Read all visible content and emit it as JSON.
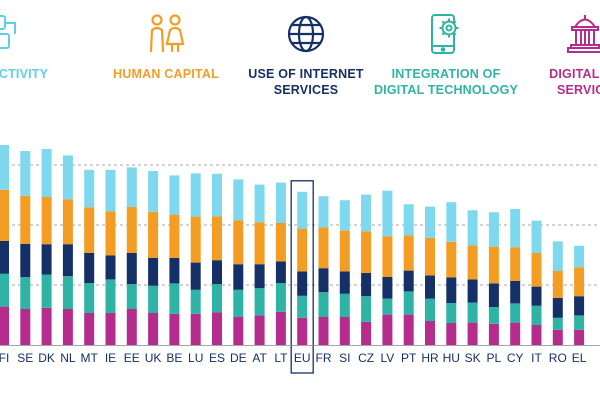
{
  "legend": {
    "connectivity": {
      "label": "NNECTIVITY",
      "color": "#5FCFE8",
      "icon": "network-icon"
    },
    "human_capital": {
      "label": "HUMAN CAPITAL",
      "color": "#F49D24",
      "icon": "people-icon"
    },
    "internet": {
      "label": "USE OF INTERNET\nSERVICES",
      "color": "#153067",
      "icon": "globe-icon"
    },
    "integration": {
      "label": "INTEGRATION OF\nDIGITAL TECHNOLOGY",
      "color": "#2FB3A5",
      "icon": "phone-gear-icon"
    },
    "public": {
      "label": "DIGITAL PU\nSERVICE",
      "color": "#B52D8C",
      "icon": "public-building-icon"
    }
  },
  "chart_data": {
    "type": "bar",
    "stacked": true,
    "categories": [
      "FI",
      "SE",
      "DK",
      "NL",
      "MT",
      "IE",
      "EE",
      "UK",
      "BE",
      "LU",
      "ES",
      "DE",
      "AT",
      "LT",
      "EU",
      "FR",
      "SI",
      "CZ",
      "LV",
      "PT",
      "HR",
      "HU",
      "SK",
      "PL",
      "CY",
      "IT",
      "RO",
      "EL"
    ],
    "highlight": "EU",
    "series": [
      {
        "name": "Digital public services",
        "color": "#B52D8C",
        "values": [
          9.6,
          9.0,
          9.3,
          9.0,
          8.0,
          8.0,
          9.0,
          8.0,
          7.8,
          7.8,
          8.2,
          7.0,
          7.4,
          8.3,
          6.8,
          7.0,
          7.0,
          5.8,
          7.6,
          7.6,
          6.0,
          5.5,
          5.6,
          5.3,
          5.6,
          5.0,
          3.8,
          3.8
        ]
      },
      {
        "name": "Integration of digital technology",
        "color": "#2FB3A5",
        "values": [
          8.2,
          8.0,
          8.3,
          8.2,
          7.5,
          8.4,
          6.2,
          6.8,
          7.6,
          6.0,
          7.0,
          6.8,
          6.8,
          7.2,
          5.5,
          6.2,
          5.8,
          6.4,
          4.0,
          5.8,
          5.6,
          5.0,
          5.0,
          4.2,
          4.8,
          4.8,
          3.0,
          3.6
        ]
      },
      {
        "name": "Use of internet services",
        "color": "#153067",
        "values": [
          8.2,
          8.3,
          7.6,
          8.0,
          7.5,
          6.0,
          7.8,
          7.0,
          6.4,
          6.8,
          6.0,
          6.4,
          6.0,
          5.4,
          6.1,
          6.0,
          5.6,
          5.8,
          5.4,
          5.2,
          5.8,
          6.4,
          5.8,
          5.9,
          5.6,
          4.8,
          5.0,
          4.8
        ]
      },
      {
        "name": "Human capital",
        "color": "#F49D24",
        "values": [
          12.8,
          12.0,
          11.8,
          11.2,
          11.4,
          11.0,
          11.5,
          11.5,
          10.8,
          11.5,
          11.0,
          11.0,
          10.5,
          9.6,
          10.7,
          10.2,
          10.2,
          10.4,
          10.2,
          8.8,
          9.4,
          8.9,
          8.5,
          9.2,
          8.4,
          8.4,
          6.7,
          7.2
        ]
      },
      {
        "name": "Connectivity",
        "color": "#7FD9EE",
        "values": [
          11.2,
          11.2,
          12.0,
          11.0,
          9.4,
          10.4,
          9.9,
          10.2,
          9.8,
          10.8,
          10.6,
          10.2,
          9.4,
          10.1,
          9.2,
          7.8,
          7.6,
          9.2,
          11.4,
          7.8,
          7.8,
          9.9,
          8.8,
          8.6,
          9.6,
          8.1,
          7.4,
          5.4
        ]
      }
    ],
    "ylim": [
      0,
      56
    ],
    "gridlines": [
      15,
      30,
      45
    ],
    "grid": "dashed"
  }
}
